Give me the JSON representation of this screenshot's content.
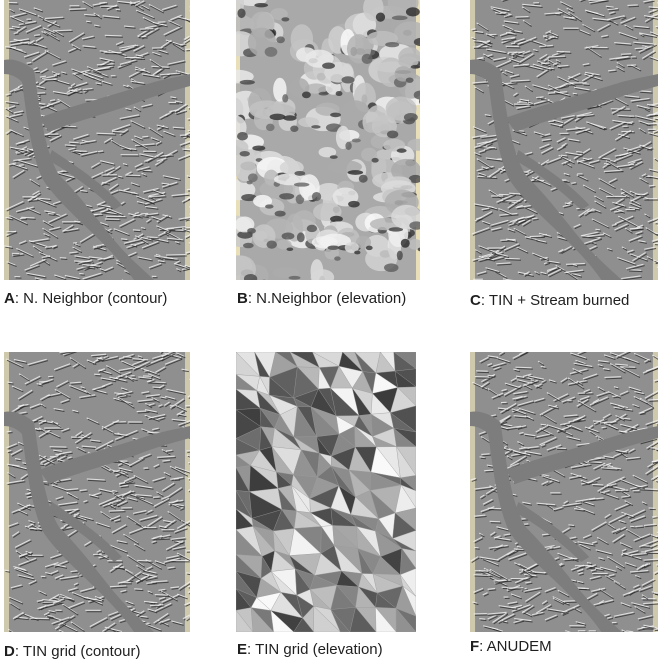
{
  "panels": [
    {
      "letter": "A",
      "label": ": N. Neighbor (contour)",
      "style": "hillshade"
    },
    {
      "letter": "B",
      "label": ": N.Neighbor (elevation)",
      "style": "blobs"
    },
    {
      "letter": "C",
      "label": ": TIN + Stream burned",
      "style": "hillshade"
    },
    {
      "letter": "D",
      "label": ": TIN grid (contour)",
      "style": "hillshade"
    },
    {
      "letter": "E",
      "label": ": TIN grid (elevation)",
      "style": "facets"
    },
    {
      "letter": "F",
      "label": ": ANUDEM",
      "style": "hillshade"
    }
  ],
  "colors": {
    "background": "#ffffff",
    "map_base": "#8f8f8f",
    "map_frame_tint": "#e8dfb8",
    "valley_fill": "#7d7d7d",
    "ridge_light": "#f2f2f2",
    "ridge_dark": "#2a2a2a"
  }
}
